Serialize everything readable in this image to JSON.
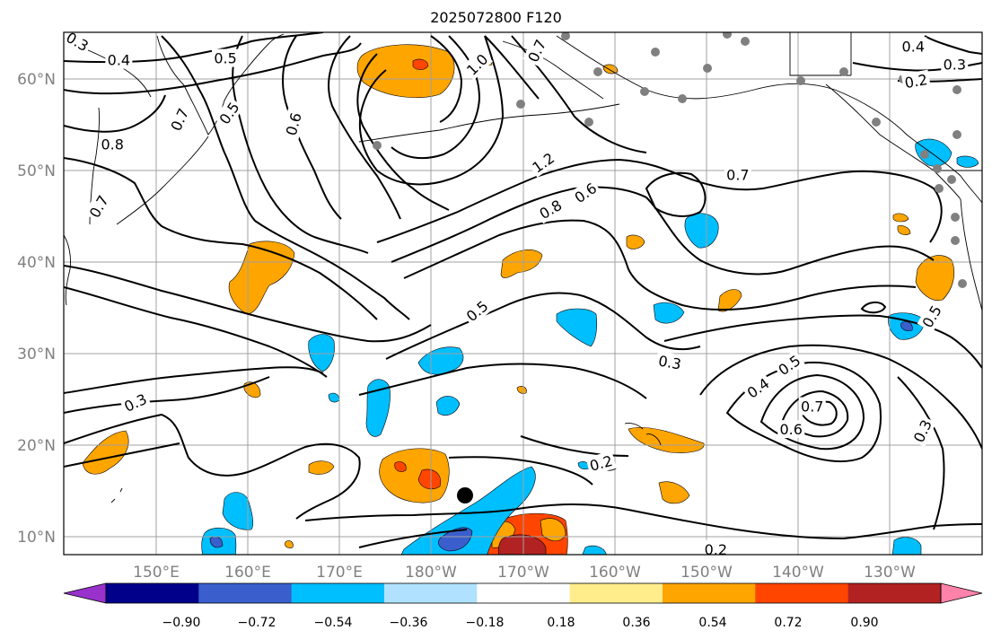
{
  "title": "2025072800 F120",
  "map": {
    "lat_labels": [
      "60°N",
      "50°N",
      "40°N",
      "30°N",
      "20°N",
      "10°N"
    ],
    "lon_labels": [
      "150°E",
      "160°E",
      "170°E",
      "180°W",
      "170°W",
      "160°W",
      "150°W",
      "140°W",
      "130°W"
    ],
    "contour_labels": [
      {
        "text": "0.3",
        "lon": 141.5,
        "lat": 64.0,
        "angle": 30
      },
      {
        "text": "0.4",
        "lon": 146.0,
        "lat": 62.0,
        "angle": 0
      },
      {
        "text": "0.5",
        "lon": 157.6,
        "lat": 62.2,
        "angle": 0
      },
      {
        "text": "0.5",
        "lon": 158.0,
        "lat": 56.2,
        "angle": -55
      },
      {
        "text": "0.6",
        "lon": 165.0,
        "lat": 55.0,
        "angle": -75
      },
      {
        "text": "0.7",
        "lon": 152.6,
        "lat": 55.5,
        "angle": -65
      },
      {
        "text": "0.7",
        "lon": 143.8,
        "lat": 46.0,
        "angle": -60
      },
      {
        "text": "0.8",
        "lon": 145.3,
        "lat": 52.8,
        "angle": 0
      },
      {
        "text": "1.0",
        "lon": 185.0,
        "lat": 61.5,
        "angle": -45
      },
      {
        "text": "1.2",
        "lon": 192.2,
        "lat": 50.8,
        "angle": -35
      },
      {
        "text": "0.8",
        "lon": 193.0,
        "lat": 45.7,
        "angle": -30
      },
      {
        "text": "0.6",
        "lon": 196.8,
        "lat": 47.5,
        "angle": -35
      },
      {
        "text": "0.7",
        "lon": 191.5,
        "lat": 63.0,
        "angle": -65
      },
      {
        "text": "0.7",
        "lon": 213.4,
        "lat": 49.5,
        "angle": 0
      },
      {
        "text": "0.5",
        "lon": 185.0,
        "lat": 34.6,
        "angle": -40
      },
      {
        "text": "0.3",
        "lon": 147.8,
        "lat": 24.6,
        "angle": -25
      },
      {
        "text": "0.3",
        "lon": 206.0,
        "lat": 29.0,
        "angle": 10
      },
      {
        "text": "0.4",
        "lon": 215.6,
        "lat": 26.2,
        "angle": -35
      },
      {
        "text": "0.5",
        "lon": 219.0,
        "lat": 28.7,
        "angle": -35
      },
      {
        "text": "0.7",
        "lon": 221.5,
        "lat": 24.2,
        "angle": 0
      },
      {
        "text": "0.6",
        "lon": 219.2,
        "lat": 21.7,
        "angle": 0
      },
      {
        "text": "0.3",
        "lon": 233.5,
        "lat": 21.5,
        "angle": -65
      },
      {
        "text": "0.2",
        "lon": 198.5,
        "lat": 18.0,
        "angle": -15
      },
      {
        "text": "0.2",
        "lon": 211.0,
        "lat": 8.6,
        "angle": 0
      },
      {
        "text": "0.5",
        "lon": 234.5,
        "lat": 34.0,
        "angle": -60
      },
      {
        "text": "0.4",
        "lon": 232.5,
        "lat": 63.5,
        "angle": 0
      },
      {
        "text": "0.3",
        "lon": 237.0,
        "lat": 61.5,
        "angle": 0
      },
      {
        "text": "0.2",
        "lon": 232.8,
        "lat": 59.7,
        "angle": -10
      }
    ]
  },
  "colorbar": {
    "tick_labels": [
      "−0.90",
      "−0.72",
      "−0.54",
      "−0.36",
      "−0.18",
      "0.18",
      "0.36",
      "0.54",
      "0.72",
      "0.90"
    ],
    "colors": [
      "#9932cc",
      "#00008b",
      "#3a5fcd",
      "#00bfff",
      "#b0e2ff",
      "#ffffff",
      "#ffec8b",
      "#ffa500",
      "#ff4500",
      "#b22222",
      "#ff82ab"
    ]
  }
}
